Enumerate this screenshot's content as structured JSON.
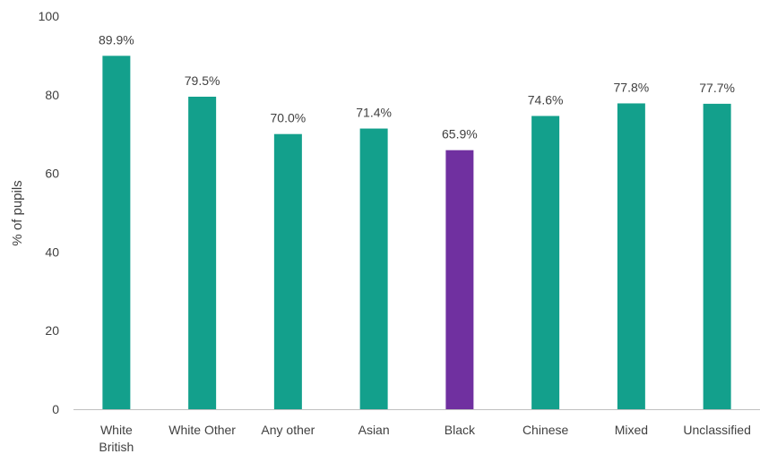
{
  "chart_data": {
    "type": "bar",
    "title": "",
    "xlabel": "",
    "ylabel": "% of pupils",
    "ylim": [
      0,
      100
    ],
    "yticks": [
      0,
      20,
      40,
      60,
      80,
      100
    ],
    "grid": false,
    "legend": "none",
    "categories": [
      [
        "White",
        "British"
      ],
      [
        "White Other"
      ],
      [
        "Any other"
      ],
      [
        "Asian"
      ],
      [
        "Black"
      ],
      [
        "Chinese"
      ],
      [
        "Mixed"
      ],
      [
        "Unclassified"
      ]
    ],
    "values": [
      89.9,
      79.5,
      70.0,
      71.4,
      65.9,
      74.6,
      77.8,
      77.7
    ],
    "data_labels": [
      "89.9%",
      "79.5%",
      "70.0%",
      "71.4%",
      "65.9%",
      "74.6%",
      "77.8%",
      "77.7%"
    ],
    "colors": {
      "default": "#13a08c",
      "highlight": "#7030a0",
      "axis": "#bfbfbf"
    },
    "highlight_index": 4
  }
}
